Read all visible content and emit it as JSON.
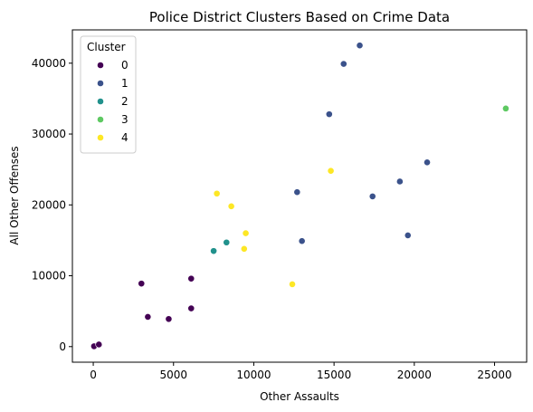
{
  "chart_data": {
    "type": "scatter",
    "title": "Police District Clusters Based on Crime Data",
    "xlabel": "Other Assaults",
    "ylabel": "All Other Offenses",
    "xlim": [
      -1300,
      27000
    ],
    "ylim": [
      -2200,
      44700
    ],
    "xticks": [
      0,
      5000,
      10000,
      15000,
      20000,
      25000
    ],
    "yticks": [
      0,
      10000,
      20000,
      30000,
      40000
    ],
    "grid": false,
    "legend": {
      "title": "Cluster",
      "placement": "top-left"
    },
    "series": [
      {
        "name": "0",
        "color": "#440154",
        "points": [
          [
            50,
            50
          ],
          [
            350,
            300
          ],
          [
            3000,
            8900
          ],
          [
            3400,
            4200
          ],
          [
            4700,
            3900
          ],
          [
            6100,
            9600
          ],
          [
            6100,
            5400
          ]
        ]
      },
      {
        "name": "1",
        "color": "#3b528b",
        "points": [
          [
            16600,
            42500
          ],
          [
            15600,
            39900
          ],
          [
            14700,
            32800
          ],
          [
            20800,
            26000
          ],
          [
            12700,
            21800
          ],
          [
            19100,
            23300
          ],
          [
            17400,
            21200
          ],
          [
            13000,
            14900
          ],
          [
            19600,
            15700
          ]
        ]
      },
      {
        "name": "2",
        "color": "#21918c",
        "points": [
          [
            7500,
            13500
          ],
          [
            8300,
            14700
          ]
        ]
      },
      {
        "name": "3",
        "color": "#5ec962",
        "points": [
          [
            25700,
            33600
          ]
        ]
      },
      {
        "name": "4",
        "color": "#fde725",
        "points": [
          [
            7700,
            21600
          ],
          [
            8600,
            19800
          ],
          [
            14800,
            24800
          ],
          [
            9500,
            16000
          ],
          [
            9400,
            13800
          ],
          [
            12400,
            8800
          ]
        ]
      }
    ]
  }
}
